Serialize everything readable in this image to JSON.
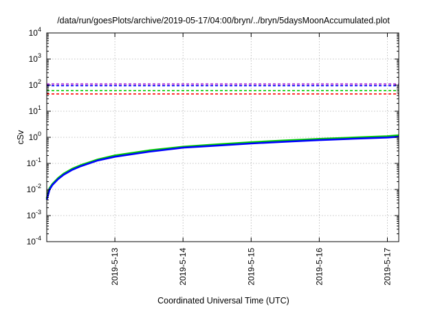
{
  "chart_data": {
    "type": "line",
    "title": "/data/run/goesPlots/archive/2019-05-17/04:00/bryn/../bryn/5daysMoonAccumulated.plot",
    "xlabel": "Coordinated Universal Time (UTC)",
    "ylabel": "cSv",
    "yscale": "log",
    "ylim": [
      0.0001,
      10000
    ],
    "xlim": [
      "2019-05-12 00:00",
      "2019-05-17 04:00"
    ],
    "grid": true,
    "x_ticks": [
      "2019-5-13",
      "2019-5-14",
      "2019-5-15",
      "2019-5-16",
      "2019-5-17"
    ],
    "y_ticks": [
      {
        "base": "10",
        "exp": "-4",
        "value": 0.0001
      },
      {
        "base": "10",
        "exp": "-3",
        "value": 0.001
      },
      {
        "base": "10",
        "exp": "-2",
        "value": 0.01
      },
      {
        "base": "10",
        "exp": "-1",
        "value": 0.1
      },
      {
        "base": "10",
        "exp": "0",
        "value": 1
      },
      {
        "base": "10",
        "exp": "1",
        "value": 10
      },
      {
        "base": "10",
        "exp": "2",
        "value": 100
      },
      {
        "base": "10",
        "exp": "3",
        "value": 1000
      },
      {
        "base": "10",
        "exp": "4",
        "value": 10000
      }
    ],
    "thresholds": [
      {
        "value": 110,
        "color": "#9400d3",
        "style": "dashed"
      },
      {
        "value": 95,
        "color": "#0000ff",
        "style": "dashed"
      },
      {
        "value": 62,
        "color": "#00cc00",
        "style": "dashed"
      },
      {
        "value": 46,
        "color": "#ff0000",
        "style": "dashed"
      }
    ],
    "series": [
      {
        "color": "#00cc00",
        "x": [
          "2019-05-12 00:00",
          "2019-05-12 01:00",
          "2019-05-12 02:00",
          "2019-05-12 04:00",
          "2019-05-12 06:00",
          "2019-05-12 09:00",
          "2019-05-12 12:00",
          "2019-05-12 18:00",
          "2019-05-13 00:00",
          "2019-05-13 12:00",
          "2019-05-14 00:00",
          "2019-05-14 12:00",
          "2019-05-15 00:00",
          "2019-05-15 12:00",
          "2019-05-16 00:00",
          "2019-05-16 12:00",
          "2019-05-17 00:00",
          "2019-05-17 04:00"
        ],
        "y": [
          0.0045,
          0.011,
          0.016,
          0.027,
          0.04,
          0.062,
          0.085,
          0.14,
          0.2,
          0.31,
          0.43,
          0.53,
          0.64,
          0.75,
          0.86,
          0.97,
          1.09,
          1.18
        ]
      },
      {
        "color": "#0000ff",
        "x": [
          "2019-05-12 00:00",
          "2019-05-12 01:00",
          "2019-05-12 02:00",
          "2019-05-12 04:00",
          "2019-05-12 06:00",
          "2019-05-12 09:00",
          "2019-05-12 12:00",
          "2019-05-12 18:00",
          "2019-05-13 00:00",
          "2019-05-13 12:00",
          "2019-05-14 00:00",
          "2019-05-14 12:00",
          "2019-05-15 00:00",
          "2019-05-15 12:00",
          "2019-05-16 00:00",
          "2019-05-16 12:00",
          "2019-05-17 00:00",
          "2019-05-17 04:00"
        ],
        "y": [
          0.004,
          0.01,
          0.015,
          0.025,
          0.037,
          0.057,
          0.078,
          0.13,
          0.18,
          0.28,
          0.4,
          0.48,
          0.58,
          0.68,
          0.78,
          0.88,
          0.98,
          1.05
        ]
      }
    ]
  }
}
